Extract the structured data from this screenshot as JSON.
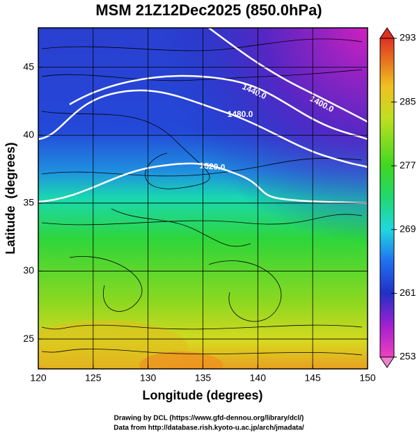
{
  "chart_data": {
    "type": "map",
    "title": "MSM 21Z12Dec2025 (850.0hPa)",
    "xlabel": "Longitude (degrees)",
    "ylabel": "Latitude  (degrees)",
    "xlim": [
      120,
      150
    ],
    "ylim": [
      22.8,
      47.9
    ],
    "xticks": [
      120,
      125,
      130,
      135,
      140,
      145,
      150
    ],
    "yticks": [
      25,
      30,
      35,
      40,
      45
    ],
    "grid": true,
    "clim": [
      253,
      293
    ],
    "cticks": [
      253,
      261,
      269,
      277,
      285,
      293
    ],
    "contours": [
      {
        "value": 1400,
        "label": "1400.0"
      },
      {
        "value": 1440,
        "label": "1440.0"
      },
      {
        "value": 1480,
        "label": "1480.0"
      },
      {
        "value": 1520,
        "label": "1520.0"
      }
    ],
    "credits": [
      "Drawing by DCL (https://www.gfd-dennou.org/library/dcl/)",
      "Data from http://database.rish.kyoto-u.ac.jp/arch/jmadata/"
    ]
  }
}
